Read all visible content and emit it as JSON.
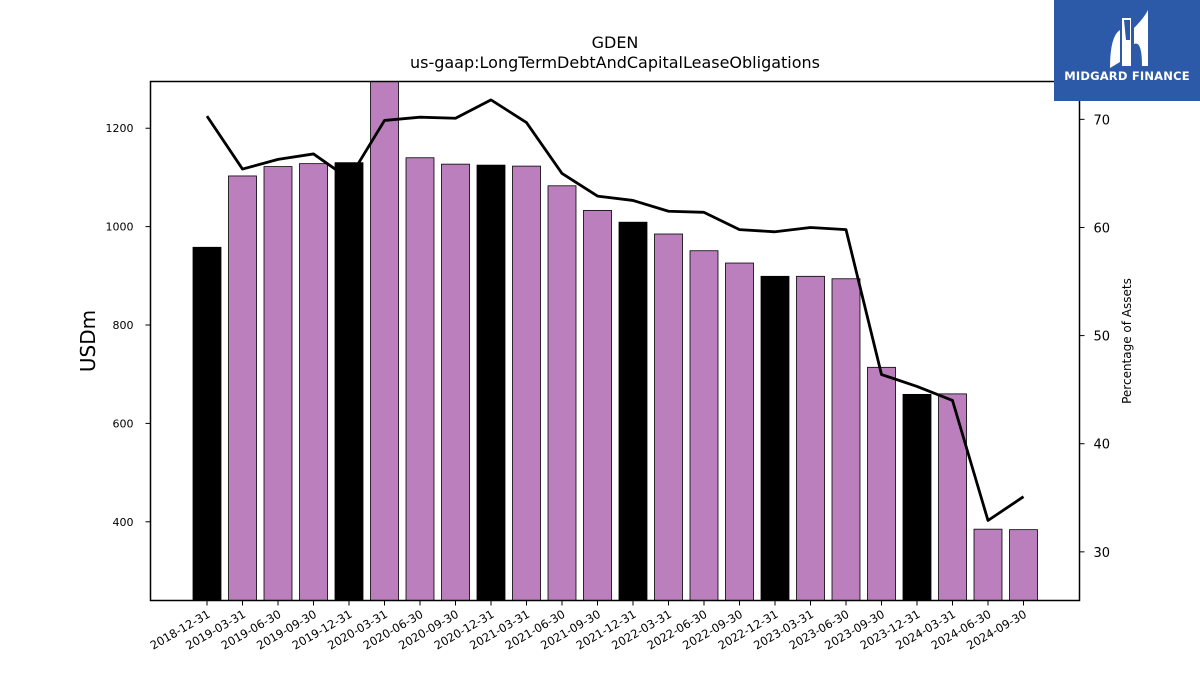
{
  "brand": {
    "name": "MIDGARD FINANCE",
    "logo_color": "#2c5aa8"
  },
  "chart_data": {
    "type": "bar",
    "title": "GDEN",
    "subtitle": "us-gaap:LongTermDebtAndCapitalLeaseObligations",
    "ylabel": "USDm",
    "y2label": "Percentage of Assets",
    "ylim": [
      240,
      1295
    ],
    "y2lim": [
      25.5,
      73.5
    ],
    "yticks": [
      400,
      600,
      800,
      1000,
      1200
    ],
    "y2ticks": [
      30,
      40,
      50,
      60,
      70
    ],
    "categories": [
      "2018-12-31",
      "2019-03-31",
      "2019-06-30",
      "2019-09-30",
      "2019-12-31",
      "2020-03-31",
      "2020-06-30",
      "2020-09-30",
      "2020-12-31",
      "2021-03-31",
      "2021-06-30",
      "2021-09-30",
      "2021-12-31",
      "2022-03-31",
      "2022-06-30",
      "2022-09-30",
      "2022-12-31",
      "2023-03-31",
      "2023-06-30",
      "2023-09-30",
      "2023-12-31",
      "2024-03-31",
      "2024-06-30",
      "2024-09-30"
    ],
    "series": [
      {
        "kind": "bar",
        "values": [
          958,
          1103,
          1122,
          1128,
          1130,
          1295,
          1140,
          1127,
          1125,
          1123,
          1083,
          1033,
          1009,
          985,
          951,
          926,
          899,
          899,
          894,
          714,
          659,
          660,
          385,
          384
        ],
        "colors": [
          "#000000",
          "#bc7fbd",
          "#bc7fbd",
          "#bc7fbd",
          "#000000",
          "#bc7fbd",
          "#bc7fbd",
          "#bc7fbd",
          "#000000",
          "#bc7fbd",
          "#bc7fbd",
          "#bc7fbd",
          "#000000",
          "#bc7fbd",
          "#bc7fbd",
          "#bc7fbd",
          "#000000",
          "#bc7fbd",
          "#bc7fbd",
          "#bc7fbd",
          "#000000",
          "#bc7fbd",
          "#bc7fbd",
          "#bc7fbd"
        ]
      },
      {
        "kind": "line",
        "axis": "right",
        "values": [
          70.3,
          65.4,
          66.3,
          66.8,
          64.5,
          69.9,
          70.2,
          70.1,
          71.8,
          69.7,
          65.0,
          62.9,
          62.5,
          61.5,
          61.4,
          59.8,
          59.6,
          60.0,
          59.8,
          46.4,
          45.3,
          44.0,
          32.9,
          35.1
        ],
        "color": "#000000"
      }
    ],
    "grid": false
  }
}
